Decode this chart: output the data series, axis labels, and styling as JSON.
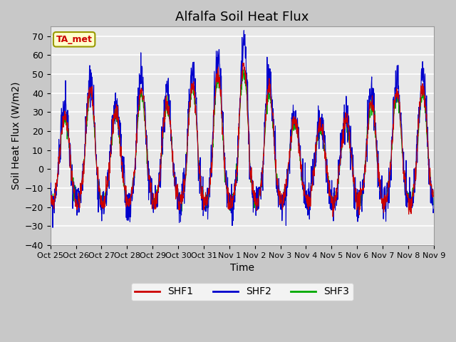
{
  "title": "Alfalfa Soil Heat Flux",
  "ylabel": "Soil Heat Flux (W/m2)",
  "xlabel": "Time",
  "ylim": [
    -40,
    75
  ],
  "yticks": [
    -40,
    -30,
    -20,
    -10,
    0,
    10,
    20,
    30,
    40,
    50,
    60,
    70
  ],
  "xlim": [
    0,
    360
  ],
  "xtick_positions": [
    0,
    24,
    48,
    72,
    96,
    120,
    144,
    168,
    192,
    216,
    240,
    264,
    288,
    312,
    336,
    360
  ],
  "xtick_labels": [
    "Oct 25",
    "Oct 26",
    "Oct 27",
    "Oct 28",
    "Oct 29",
    "Oct 30",
    "Oct 31",
    "Nov 1",
    "Nov 2",
    "Nov 3",
    "Nov 4",
    "Nov 5",
    "Nov 6",
    "Nov 7",
    "Nov 8",
    "Nov 9"
  ],
  "shf1_color": "#CC0000",
  "shf2_color": "#0000CC",
  "shf3_color": "#00AA00",
  "legend_labels": [
    "SHF1",
    "SHF2",
    "SHF3"
  ],
  "annotation_text": "TA_met",
  "annotation_color": "#CC0000",
  "annotation_bg": "#FFFFCC",
  "annotation_edge": "#999900",
  "fig_bg_color": "#C8C8C8",
  "plot_bg_color": "#E8E8E8",
  "grid_color": "#FFFFFF",
  "title_fontsize": 13,
  "label_fontsize": 10,
  "tick_fontsize": 9
}
